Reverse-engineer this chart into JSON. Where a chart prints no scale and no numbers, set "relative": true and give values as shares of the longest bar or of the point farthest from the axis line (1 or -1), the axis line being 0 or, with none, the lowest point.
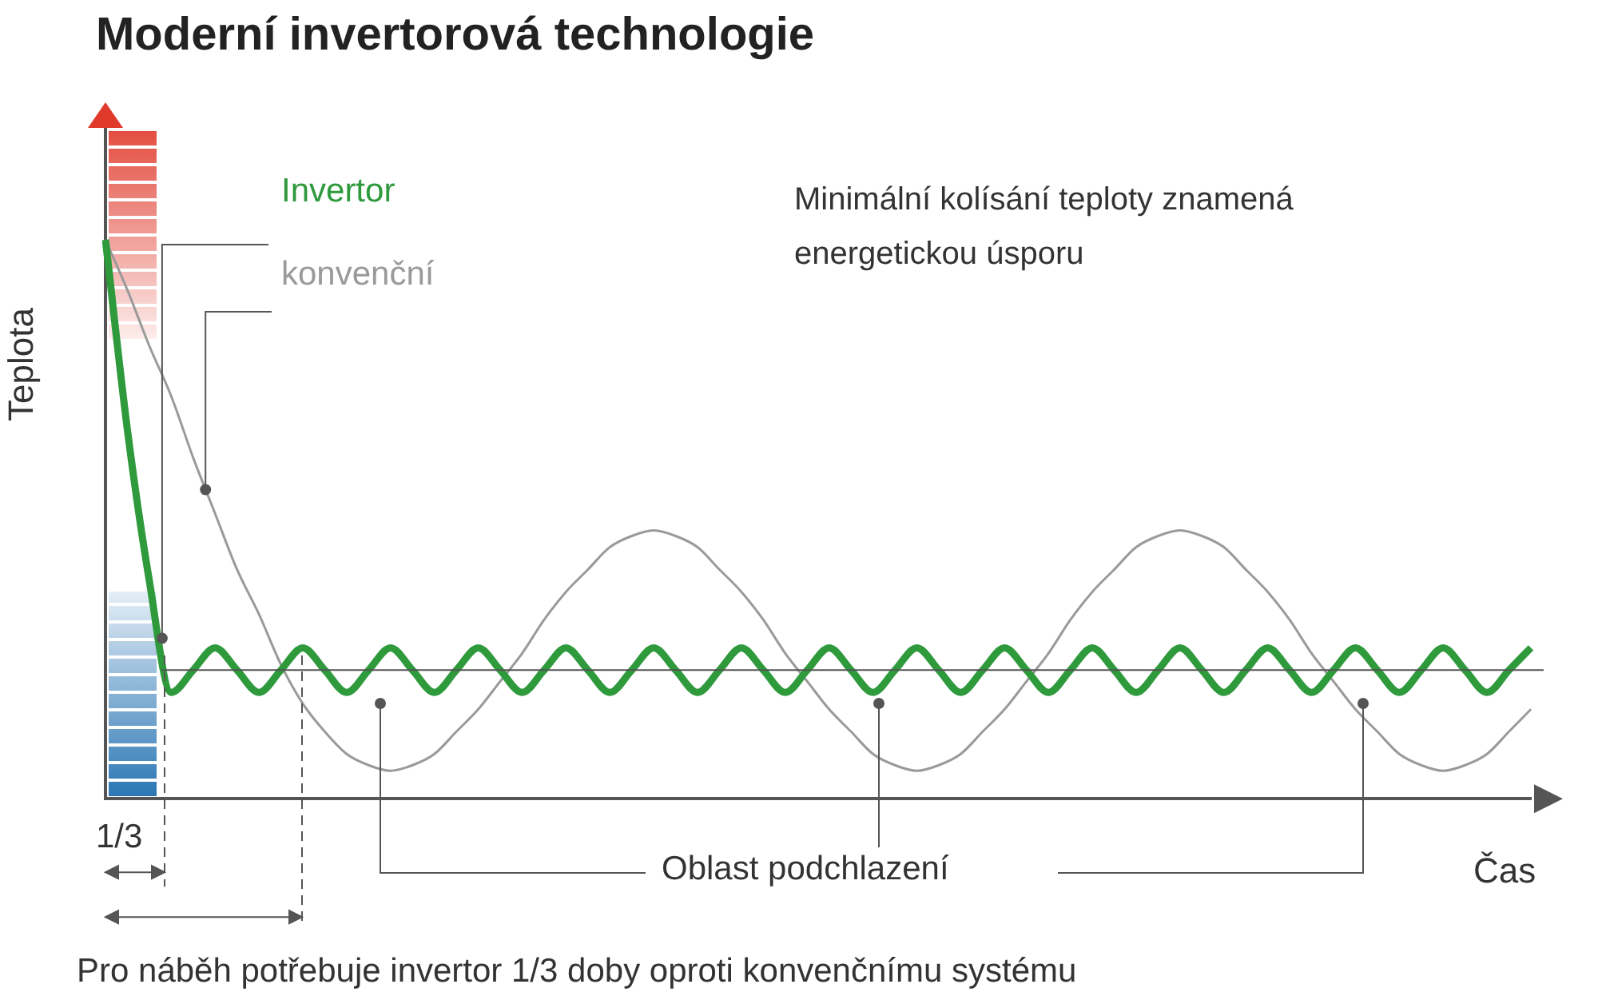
{
  "chart_data": {
    "type": "line",
    "title": "Moderní invertorová technologie",
    "xlabel": "Čas",
    "ylabel": "Teplota",
    "relative": true,
    "marker": "none",
    "line_style": "solid",
    "grid": false,
    "legend": false,
    "categories": [
      null,
      null,
      null,
      null,
      null,
      null,
      null,
      null,
      null,
      null,
      null,
      null,
      null,
      null,
      null,
      null,
      null,
      null,
      null,
      null,
      null,
      null,
      null,
      null,
      null,
      null,
      null,
      null,
      null,
      null,
      null,
      null,
      null,
      null,
      null,
      null,
      null,
      null,
      null,
      null,
      null,
      null,
      null,
      null,
      null,
      null,
      null,
      null,
      null,
      null,
      null,
      null,
      null,
      null,
      null,
      null,
      null,
      null,
      null,
      null,
      null,
      null,
      null,
      null,
      null,
      null
    ],
    "series": [
      {
        "name": "Invertor",
        "color": "#2e9a3c",
        "values": [
          1.0,
          0.66,
          0.39,
          0.19,
          0.23,
          0.27,
          0.23,
          0.19,
          0.23,
          0.27,
          0.23,
          0.19,
          0.23,
          0.27,
          0.23,
          0.19,
          0.23,
          0.27,
          0.23,
          0.19,
          0.23,
          0.27,
          0.23,
          0.19,
          0.23,
          0.27,
          0.23,
          0.19,
          0.23,
          0.27,
          0.23,
          0.19,
          0.23,
          0.27,
          0.23,
          0.19,
          0.23,
          0.27,
          0.23,
          0.19,
          0.23,
          0.27,
          0.23,
          0.19,
          0.23,
          0.27,
          0.23,
          0.19,
          0.23,
          0.27,
          0.23,
          0.19,
          0.23,
          0.27,
          0.23,
          0.19,
          0.23,
          0.27,
          0.23,
          0.19,
          0.23,
          0.27,
          0.23,
          0.19,
          0.23,
          0.27
        ]
      },
      {
        "name": "konvenční",
        "color": "#9a9a9a",
        "values": [
          1.0,
          0.91,
          0.81,
          0.72,
          0.61,
          0.51,
          0.41,
          0.33,
          0.24,
          0.17,
          0.12,
          0.08,
          0.06,
          0.05,
          0.06,
          0.08,
          0.12,
          0.16,
          0.21,
          0.26,
          0.32,
          0.37,
          0.41,
          0.45,
          0.47,
          0.48,
          0.47,
          0.45,
          0.41,
          0.37,
          0.32,
          0.26,
          0.21,
          0.16,
          0.12,
          0.08,
          0.06,
          0.05,
          0.06,
          0.08,
          0.12,
          0.16,
          0.21,
          0.26,
          0.32,
          0.37,
          0.41,
          0.45,
          0.47,
          0.48,
          0.47,
          0.45,
          0.41,
          0.37,
          0.32,
          0.26,
          0.21,
          0.16,
          0.12,
          0.08,
          0.06,
          0.05,
          0.06,
          0.08,
          0.12,
          0.16
        ]
      }
    ],
    "ref_lines": [
      {
        "axis": "y",
        "value": 0.23,
        "color": "#555555"
      }
    ],
    "annotations": [
      "Minimální kolísání teploty znamená energetickou úsporu",
      "1/3",
      "Oblast podchlazení",
      "Pro náběh potřebuje invertor 1/3 doby oproti konvenčnímu systému"
    ]
  }
}
